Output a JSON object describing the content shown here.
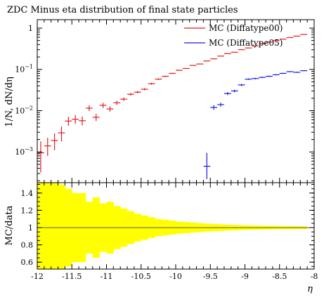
{
  "chart_data": {
    "type": "scatter",
    "title": "ZDC Minus eta distribution of final state particles",
    "xlabel": "η",
    "ylabel": "1/N, dN/dη",
    "ratio_ylabel": "MC/data",
    "xlim": [
      -12,
      -8
    ],
    "ylim": [
      0.00018,
      1.6
    ],
    "yscale": "log",
    "ratio_ylim": [
      0.52,
      1.52
    ],
    "x_ticks": [
      "-12",
      "-11.5",
      "-11",
      "-10.5",
      "-10",
      "-9.5",
      "-9",
      "-8.5",
      "-8"
    ],
    "y_ticks": [
      "10^-3",
      "10^-2",
      "10^-1",
      "1"
    ],
    "ratio_ticks": [
      "0.6",
      "0.8",
      "1",
      "1.2",
      "1.4"
    ],
    "legend_position": "top-right",
    "series": [
      {
        "name": "MC (Diffatype00)",
        "color": "#e41a1c",
        "bin_width": 0.1,
        "x": [
          -11.95,
          -11.85,
          -11.75,
          -11.65,
          -11.55,
          -11.45,
          -11.35,
          -11.25,
          -11.15,
          -11.05,
          -10.95,
          -10.85,
          -10.75,
          -10.65,
          -10.55,
          -10.45,
          -10.35,
          -10.25,
          -10.15,
          -10.05,
          -9.95,
          -9.85,
          -9.75,
          -9.65,
          -9.55,
          -9.45,
          -9.35,
          -9.25,
          -9.15,
          -9.05,
          -8.95,
          -8.85,
          -8.75,
          -8.65,
          -8.55,
          -8.45,
          -8.35,
          -8.25,
          -8.15
        ],
        "y": [
          0.00095,
          0.0014,
          0.0019,
          0.0029,
          0.0056,
          0.0062,
          0.0057,
          0.0115,
          0.0069,
          0.0135,
          0.011,
          0.0155,
          0.019,
          0.025,
          0.028,
          0.033,
          0.045,
          0.058,
          0.068,
          0.08,
          0.095,
          0.105,
          0.125,
          0.135,
          0.16,
          0.18,
          0.21,
          0.24,
          0.26,
          0.3,
          0.33,
          0.37,
          0.42,
          0.46,
          0.5,
          0.54,
          0.59,
          0.64,
          0.7
        ],
        "y_low": [
          0.00032,
          0.0008,
          0.0011,
          0.0018,
          0.0043,
          0.0048,
          0.0044,
          0.0098,
          0.0056,
          0.0116,
          0.0095,
          0.0138,
          0.0172,
          0.0232,
          0.0262,
          0.031,
          0.0425,
          0.0555,
          0.0655,
          0.0775,
          0.0925,
          0.1025,
          0.1225,
          0.1325,
          0.1575,
          0.1775,
          0.2075,
          0.2375,
          0.2575,
          0.2975,
          0.3275,
          0.3675,
          0.4175,
          0.4575,
          0.4975,
          0.5375,
          0.5875,
          0.6375,
          0.6975
        ],
        "y_high": [
          0.0018,
          0.0022,
          0.0028,
          0.0041,
          0.0071,
          0.0078,
          0.0072,
          0.0134,
          0.0083,
          0.0155,
          0.0127,
          0.0173,
          0.0209,
          0.0269,
          0.0299,
          0.035,
          0.0475,
          0.0605,
          0.0705,
          0.0825,
          0.0975,
          0.1075,
          0.1275,
          0.1375,
          0.1625,
          0.1825,
          0.2125,
          0.2425,
          0.2625,
          0.3025,
          0.3325,
          0.3725,
          0.4225,
          0.4625,
          0.5025,
          0.5425,
          0.5925,
          0.6425,
          0.7025
        ]
      },
      {
        "name": "MC (Diffatype05)",
        "color": "#1a1adc",
        "bin_width": 0.1,
        "x": [
          -9.55,
          -9.45,
          -9.35,
          -9.25,
          -9.15,
          -9.05,
          -8.95,
          -8.85,
          -8.75,
          -8.65,
          -8.55,
          -8.45,
          -8.35,
          -8.25,
          -8.15
        ],
        "y": [
          0.00045,
          0.012,
          0.014,
          0.026,
          0.03,
          0.042,
          0.058,
          0.06,
          0.064,
          0.068,
          0.074,
          0.08,
          0.088,
          0.085,
          0.093
        ],
        "y_low": [
          0.00022,
          0.0105,
          0.0125,
          0.0238,
          0.0278,
          0.0395,
          0.0555,
          0.0575,
          0.0615,
          0.0655,
          0.0715,
          0.0775,
          0.0855,
          0.0825,
          0.0905
        ],
        "y_high": [
          0.00095,
          0.0136,
          0.0156,
          0.0282,
          0.0322,
          0.0445,
          0.0605,
          0.0625,
          0.0665,
          0.0705,
          0.0765,
          0.0825,
          0.0905,
          0.0875,
          0.0955
        ]
      }
    ],
    "ratio_band": {
      "color": "#ffff00",
      "x": [
        -11.95,
        -11.85,
        -11.75,
        -11.65,
        -11.55,
        -11.45,
        -11.35,
        -11.25,
        -11.15,
        -11.05,
        -10.95,
        -10.85,
        -10.75,
        -10.65,
        -10.55,
        -10.45,
        -10.35,
        -10.25,
        -10.15,
        -10.05,
        -9.95,
        -9.85,
        -9.75,
        -9.65,
        -9.55,
        -9.45,
        -9.35,
        -9.25,
        -9.15,
        -9.05,
        -8.95,
        -8.85,
        -8.75,
        -8.65,
        -8.55,
        -8.45,
        -8.35,
        -8.25,
        -8.15
      ],
      "half_width": [
        0.6,
        0.6,
        0.6,
        0.5,
        0.45,
        0.4,
        0.4,
        0.3,
        0.35,
        0.28,
        0.3,
        0.25,
        0.22,
        0.19,
        0.16,
        0.14,
        0.12,
        0.1,
        0.09,
        0.08,
        0.07,
        0.065,
        0.058,
        0.052,
        0.046,
        0.042,
        0.038,
        0.034,
        0.031,
        0.028,
        0.026,
        0.024,
        0.022,
        0.021,
        0.02,
        0.019,
        0.018,
        0.017,
        0.016
      ]
    },
    "ratio_reference": 1
  }
}
